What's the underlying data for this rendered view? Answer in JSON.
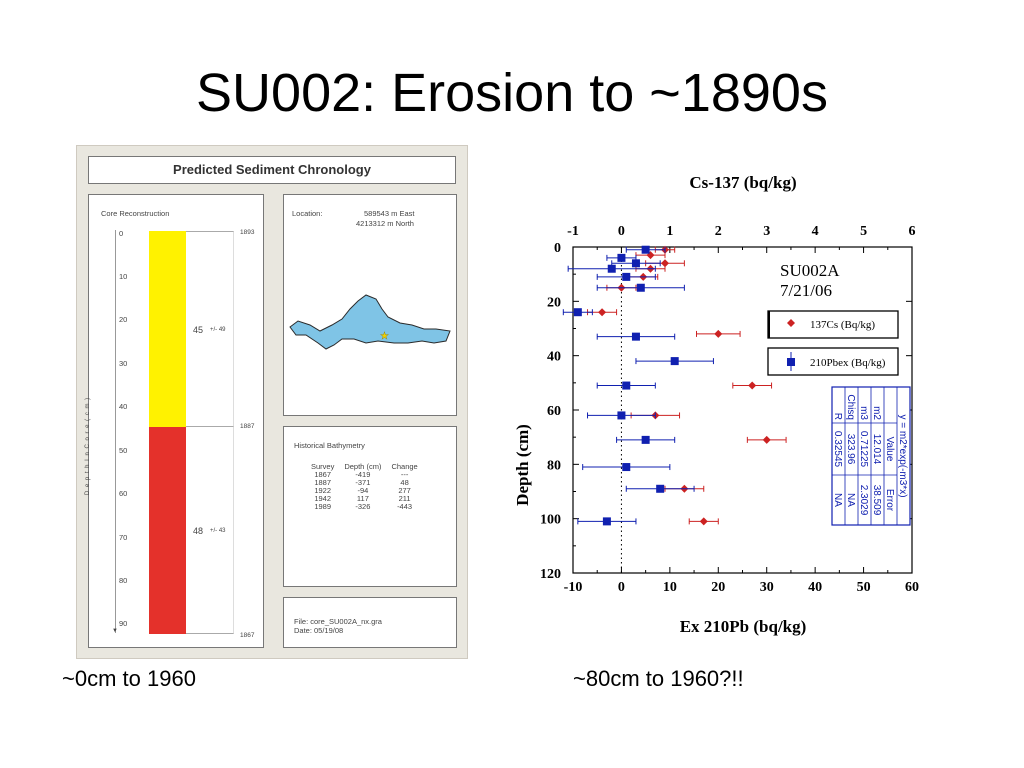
{
  "slide": {
    "title": "SU002: Erosion to ~1890s",
    "caption_left": "~0cm to 1960",
    "caption_right": "~80cm to 1960?!!"
  },
  "left_figure": {
    "title": "Predicted Sediment Chronology",
    "core_panel": {
      "heading": "Core Reconstruction",
      "axis_label": "D e p t h   I n   C o r e   ( c m )",
      "ticks": [
        "0",
        "10",
        "20",
        "30",
        "40",
        "50",
        "60",
        "70",
        "80",
        "90"
      ],
      "date_labels": [
        "1893",
        "1887",
        "1867"
      ],
      "upper_unit": {
        "rate": "45",
        "error": "+/- 49",
        "color": "#fff200"
      },
      "lower_unit": {
        "rate": "48",
        "error": "+/- 43",
        "color": "#e4312b"
      }
    },
    "location": {
      "label": "Location:",
      "east": "589543 m East",
      "north": "4213312 m North",
      "lake_color": "#7fc4e6"
    },
    "bathymetry": {
      "heading": "Historical Bathymetry",
      "columns": [
        "Survey",
        "Depth (cm)",
        "Change"
      ],
      "rows": [
        [
          "1867",
          "-419",
          "---"
        ],
        [
          "1887",
          "-371",
          "48"
        ],
        [
          "1922",
          "-94",
          "277"
        ],
        [
          "1942",
          "117",
          "211"
        ],
        [
          "1989",
          "-326",
          "-443"
        ]
      ]
    },
    "file_info": {
      "file": "File: core_SU002A_nx.gra",
      "date": "Date: 05/19/08"
    }
  },
  "chart_data": {
    "type": "scatter",
    "title": "Cs-137 (bq/kg)",
    "xlabel": "Ex 210Pb (bq/kg)",
    "ylabel": "Depth (cm)",
    "xlim": [
      -10,
      60
    ],
    "x2lim": [
      -1,
      6
    ],
    "ylim": [
      0,
      120
    ],
    "y_reversed": true,
    "x_ticks": [
      "-10",
      "0",
      "10",
      "20",
      "30",
      "40",
      "50",
      "60"
    ],
    "x2_ticks": [
      "-1",
      "0",
      "1",
      "2",
      "3",
      "4",
      "5",
      "6"
    ],
    "y_ticks": [
      "0",
      "20",
      "40",
      "60",
      "80",
      "100",
      "120"
    ],
    "annotation": {
      "line1": "SU002A",
      "line2": "7/21/06"
    },
    "series": [
      {
        "name": "137Cs (Bq/kg)",
        "color": "#cc2222",
        "marker": "diamond",
        "axis": "top",
        "points": [
          {
            "x": 0.9,
            "y": 1,
            "err": 0.2
          },
          {
            "x": 0.6,
            "y": 3,
            "err": 0.3
          },
          {
            "x": 0.9,
            "y": 6,
            "err": 0.4
          },
          {
            "x": 0.6,
            "y": 8,
            "err": 0.3
          },
          {
            "x": 0.45,
            "y": 11,
            "err": 0.3
          },
          {
            "x": 0.0,
            "y": 15,
            "err": 0.3
          },
          {
            "x": -0.4,
            "y": 24,
            "err": 0.3
          },
          {
            "x": 2.0,
            "y": 32,
            "err": 0.45
          },
          {
            "x": 2.7,
            "y": 51,
            "err": 0.4
          },
          {
            "x": 0.7,
            "y": 62,
            "err": 0.5
          },
          {
            "x": 3.0,
            "y": 71,
            "err": 0.4
          },
          {
            "x": 1.3,
            "y": 89,
            "err": 0.4
          },
          {
            "x": 1.7,
            "y": 101,
            "err": 0.3
          }
        ]
      },
      {
        "name": "210Pbex (Bq/kg)",
        "color": "#1020b0",
        "marker": "square",
        "axis": "bottom",
        "points": [
          {
            "x": 5,
            "y": 1,
            "err": 4
          },
          {
            "x": 0,
            "y": 4,
            "err": 3
          },
          {
            "x": 3,
            "y": 6,
            "err": 5
          },
          {
            "x": -2,
            "y": 8,
            "err": 9
          },
          {
            "x": 1,
            "y": 11,
            "err": 6
          },
          {
            "x": 4,
            "y": 15,
            "err": 9
          },
          {
            "x": -9,
            "y": 24,
            "err": 3
          },
          {
            "x": 3,
            "y": 33,
            "err": 8
          },
          {
            "x": 11,
            "y": 42,
            "err": 8
          },
          {
            "x": 1,
            "y": 51,
            "err": 6
          },
          {
            "x": 0,
            "y": 62,
            "err": 7
          },
          {
            "x": 5,
            "y": 71,
            "err": 6
          },
          {
            "x": 1,
            "y": 81,
            "err": 9
          },
          {
            "x": 8,
            "y": 89,
            "err": 7
          },
          {
            "x": -3,
            "y": 101,
            "err": 6
          }
        ]
      }
    ],
    "legend": {
      "placement": "right",
      "cs_label": "137Cs (Bq/kg)",
      "pb_label": "210Pbex (Bq/kg)"
    },
    "fit_table": {
      "header": "y = m2*exp(-m3*x)",
      "columns": [
        "",
        "Value",
        "Error"
      ],
      "rows": [
        [
          "m2",
          "12.014",
          "38.509"
        ],
        [
          "m3",
          "0.71225",
          "2.3029"
        ],
        [
          "Chisq",
          "323.96",
          "NA"
        ],
        [
          "R",
          "0.32545",
          "NA"
        ]
      ]
    }
  }
}
